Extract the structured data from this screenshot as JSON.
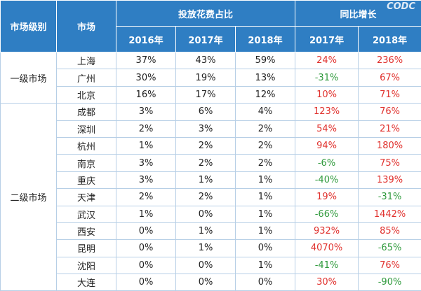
{
  "header": {
    "columns": [
      "市场级别",
      "市场"
    ],
    "spans": [
      "投放花费占比",
      "同比增长"
    ],
    "years": [
      "2016年",
      "2017年",
      "2018年",
      "2017年",
      "2018年"
    ]
  },
  "watermark": "CODC",
  "groups": [
    {
      "label": "一级市场",
      "rows": [
        [
          "上海",
          "37%",
          "43%",
          "59%",
          "24%",
          "236%"
        ],
        [
          "广州",
          "30%",
          "19%",
          "13%",
          "-31%",
          "67%"
        ],
        [
          "北京",
          "16%",
          "17%",
          "12%",
          "10%",
          "71%"
        ]
      ]
    },
    {
      "label": "二级市场",
      "rows": [
        [
          "成都",
          "3%",
          "6%",
          "4%",
          "123%",
          "76%"
        ],
        [
          "深圳",
          "2%",
          "3%",
          "2%",
          "54%",
          "21%"
        ],
        [
          "杭州",
          "1%",
          "2%",
          "2%",
          "94%",
          "180%"
        ],
        [
          "南京",
          "3%",
          "2%",
          "2%",
          "-6%",
          "75%"
        ],
        [
          "重庆",
          "3%",
          "1%",
          "1%",
          "-40%",
          "139%"
        ],
        [
          "天津",
          "2%",
          "2%",
          "1%",
          "19%",
          "-31%"
        ],
        [
          "武汉",
          "1%",
          "0%",
          "1%",
          "-66%",
          "1442%"
        ],
        [
          "西安",
          "0%",
          "1%",
          "1%",
          "932%",
          "85%"
        ],
        [
          "昆明",
          "0%",
          "1%",
          "0%",
          "4070%",
          "-65%"
        ],
        [
          "沈阳",
          "0%",
          "0%",
          "1%",
          "-41%",
          "76%"
        ],
        [
          "大连",
          "0%",
          "0%",
          "0%",
          "30%",
          "-90%"
        ]
      ]
    }
  ]
}
